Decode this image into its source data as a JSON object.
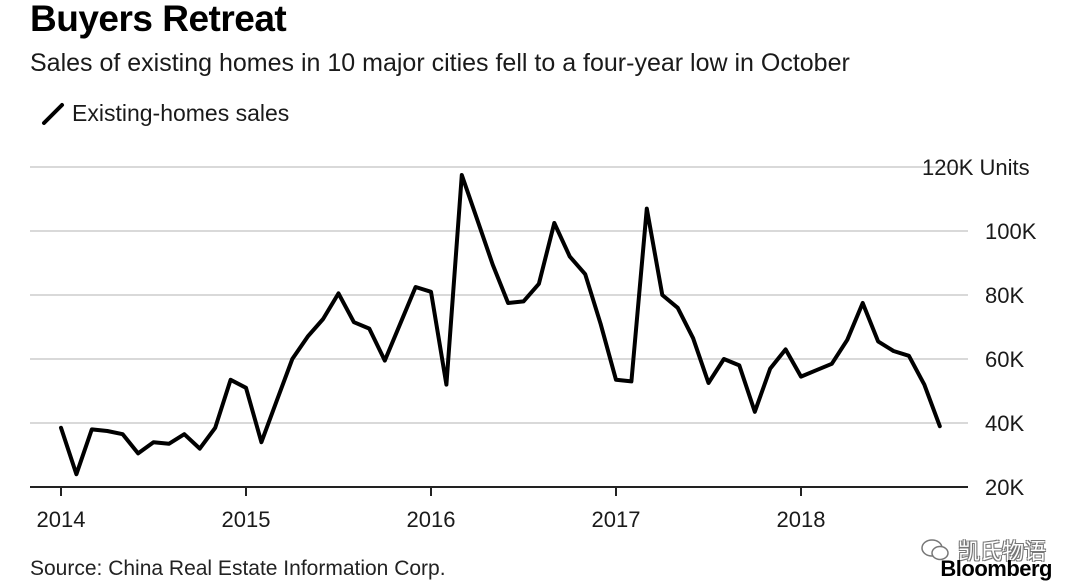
{
  "header": {
    "title": "Buyers Retreat",
    "subtitle": "Sales of existing homes in 10 major cities fell to a four-year low in October"
  },
  "legend": {
    "label": "Existing-homes sales"
  },
  "footer": {
    "source": "Source: China Real Estate Information Corp.",
    "watermark": "凯氏物语",
    "brand": "Bloomberg"
  },
  "colors": {
    "line": "#000000",
    "grid": "#d9d9d9",
    "axis": "#222222"
  },
  "chart_data": {
    "type": "line",
    "title": "Buyers Retreat",
    "subtitle": "Sales of existing homes in 10 major cities fell to a four-year low in October",
    "xlabel": "",
    "ylabel": "",
    "y_unit_label": "120K Units",
    "ylim": [
      20000,
      120000
    ],
    "y_ticks": [
      20000,
      40000,
      60000,
      80000,
      100000,
      120000
    ],
    "y_tick_labels": [
      "20K",
      "40K",
      "60K",
      "80K",
      "100K",
      "120K Units"
    ],
    "x_ticks": [
      "2014",
      "2015",
      "2016",
      "2017",
      "2018"
    ],
    "grid": true,
    "legend_position": "top-left",
    "series": [
      {
        "name": "Existing-homes sales",
        "x": [
          "2014-01",
          "2014-02",
          "2014-03",
          "2014-04",
          "2014-05",
          "2014-06",
          "2014-07",
          "2014-08",
          "2014-09",
          "2014-10",
          "2014-11",
          "2014-12",
          "2015-01",
          "2015-02",
          "2015-03",
          "2015-04",
          "2015-05",
          "2015-06",
          "2015-07",
          "2015-08",
          "2015-09",
          "2015-10",
          "2015-11",
          "2015-12",
          "2016-01",
          "2016-02",
          "2016-03",
          "2016-04",
          "2016-05",
          "2016-06",
          "2016-07",
          "2016-08",
          "2016-09",
          "2016-10",
          "2016-11",
          "2016-12",
          "2017-01",
          "2017-02",
          "2017-03",
          "2017-04",
          "2017-05",
          "2017-06",
          "2017-07",
          "2017-08",
          "2017-09",
          "2017-10",
          "2017-11",
          "2017-12",
          "2018-01",
          "2018-02",
          "2018-03",
          "2018-04",
          "2018-05",
          "2018-06",
          "2018-07",
          "2018-08",
          "2018-09",
          "2018-10"
        ],
        "values": [
          38500,
          24000,
          38000,
          37500,
          36500,
          30500,
          34000,
          33500,
          36500,
          32000,
          38500,
          53500,
          51000,
          34000,
          47000,
          60000,
          67000,
          72500,
          80500,
          71500,
          69500,
          59500,
          71000,
          82500,
          81000,
          52000,
          117500,
          103500,
          89500,
          77500,
          78000,
          83500,
          102500,
          92000,
          86500,
          71000,
          53500,
          53000,
          107000,
          80000,
          76000,
          66500,
          52500,
          60000,
          58000,
          43500,
          57000,
          63000,
          54500,
          56500,
          58500,
          66000,
          77500,
          65500,
          62500,
          61000,
          52000,
          39000
        ]
      }
    ]
  }
}
